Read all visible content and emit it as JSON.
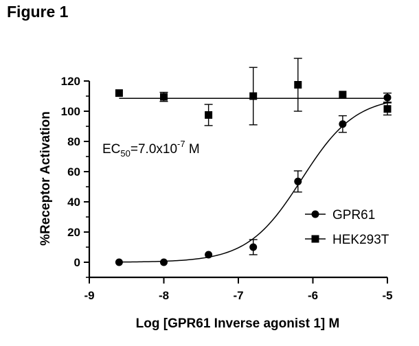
{
  "figure_label": "Figure 1",
  "chart_data": {
    "type": "scatter",
    "xlabel": "Log [GPR61 Inverse agonist 1] M",
    "ylabel": "%Receptor Activation",
    "xlim": [
      -9,
      -5
    ],
    "ylim": [
      -10,
      120
    ],
    "x_ticks": [
      -9,
      -8,
      -7,
      -6,
      -5
    ],
    "x_tick_labels": [
      "-9",
      "-8",
      "-7",
      "-6",
      "-5"
    ],
    "y_ticks": [
      0,
      20,
      40,
      60,
      80,
      100,
      120
    ],
    "y_tick_labels": [
      "0",
      "20",
      "40",
      "60",
      "80",
      "100",
      "120"
    ],
    "legend_position": "right",
    "annotation": {
      "prefix": "EC",
      "sub": "50",
      "middle": "=7.0x10",
      "sup": "-7",
      "suffix": " M"
    },
    "series": [
      {
        "name": "GPR61",
        "marker": "circle",
        "color": "#000000",
        "points": [
          {
            "x": -8.6,
            "y": 0,
            "err": 0
          },
          {
            "x": -8.0,
            "y": 0,
            "err": 0
          },
          {
            "x": -7.4,
            "y": 5,
            "err": 0
          },
          {
            "x": -6.8,
            "y": 10,
            "err": 5
          },
          {
            "x": -6.2,
            "y": 53.5,
            "err": 7
          },
          {
            "x": -5.6,
            "y": 91.5,
            "err": 5.5
          },
          {
            "x": -5.0,
            "y": 109,
            "err": 3
          }
        ],
        "fit": {
          "bottom": 0,
          "top": 110,
          "logEC50": -6.15,
          "hill": 1.2
        }
      },
      {
        "name": "HEK293T",
        "marker": "square",
        "color": "#000000",
        "points": [
          {
            "x": -8.6,
            "y": 112,
            "err": 0
          },
          {
            "x": -8.0,
            "y": 109.5,
            "err": 3
          },
          {
            "x": -7.4,
            "y": 97.5,
            "err": 7
          },
          {
            "x": -6.8,
            "y": 110,
            "err": 19
          },
          {
            "x": -6.2,
            "y": 117.5,
            "err": 17.5
          },
          {
            "x": -5.6,
            "y": 111,
            "err": 0
          },
          {
            "x": -5.0,
            "y": 101.5,
            "err": 4
          }
        ],
        "fit": {
          "constant": 108.5
        }
      }
    ]
  }
}
